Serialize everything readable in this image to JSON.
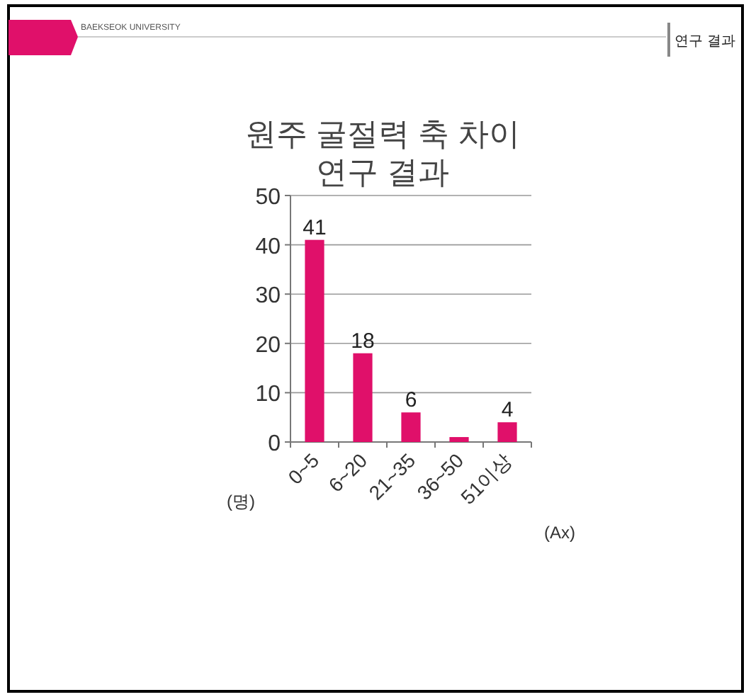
{
  "chart_data": {
    "type": "bar",
    "title": "원주 굴절력 축 차이 연구 결과",
    "categories": [
      "0~5",
      "6~20",
      "21~35",
      "36~50",
      "51이상"
    ],
    "values": [
      41,
      18,
      6,
      1,
      4
    ],
    "value_labels": [
      "41",
      "18",
      "6",
      null,
      "4"
    ],
    "color": "#e0106a",
    "ylabel": "(명)",
    "xlabel": "(Ax)",
    "ylim": [
      0,
      50
    ],
    "yticks": [
      0,
      10,
      20,
      30,
      40,
      50
    ],
    "grid": "y",
    "annotations": [
      "BAEKSEOK UNIVERSITY",
      "연구 결과"
    ]
  }
}
